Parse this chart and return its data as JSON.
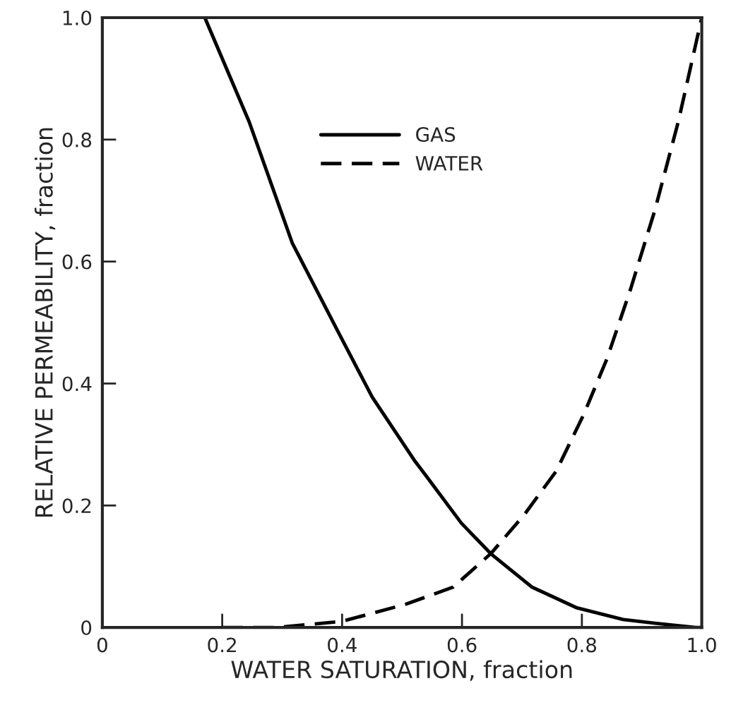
{
  "chart_data": {
    "type": "line",
    "xlabel": "WATER SATURATION, fraction",
    "ylabel": "RELATIVE PERMEABILITY, fraction",
    "xlim": [
      0,
      1.0
    ],
    "ylim": [
      0,
      1.0
    ],
    "xticks": [
      0,
      0.2,
      0.4,
      0.6,
      0.8,
      {
        "value": 1.0,
        "label": "1.0"
      }
    ],
    "yticks": [
      0,
      0.2,
      0.4,
      0.6,
      0.8,
      {
        "value": 1.0,
        "label": "1.0"
      }
    ],
    "grid": false,
    "legend": "top",
    "series": [
      {
        "name": "GAS",
        "color": "#000000",
        "line_style": "solid",
        "x": [
          0.171,
          0.245,
          0.317,
          0.397,
          0.45,
          0.522,
          0.539,
          0.599,
          0.648,
          0.717,
          0.792,
          0.869,
          0.922,
          0.99,
          1.0
        ],
        "values": [
          1.0,
          0.829,
          0.63,
          0.478,
          0.378,
          0.272,
          0.25,
          0.171,
          0.121,
          0.066,
          0.032,
          0.013,
          0.007,
          0.0,
          0.0
        ]
      },
      {
        "name": "WATER",
        "color": "#000000",
        "line_style": "dashed",
        "x": [
          0.2,
          0.29,
          0.4,
          0.506,
          0.585,
          0.648,
          0.704,
          0.757,
          0.803,
          0.842,
          0.881,
          0.922,
          0.961,
          1.0
        ],
        "values": [
          0.0,
          0.0,
          0.01,
          0.038,
          0.066,
          0.121,
          0.185,
          0.256,
          0.349,
          0.441,
          0.554,
          0.685,
          0.83,
          1.0
        ]
      }
    ]
  }
}
